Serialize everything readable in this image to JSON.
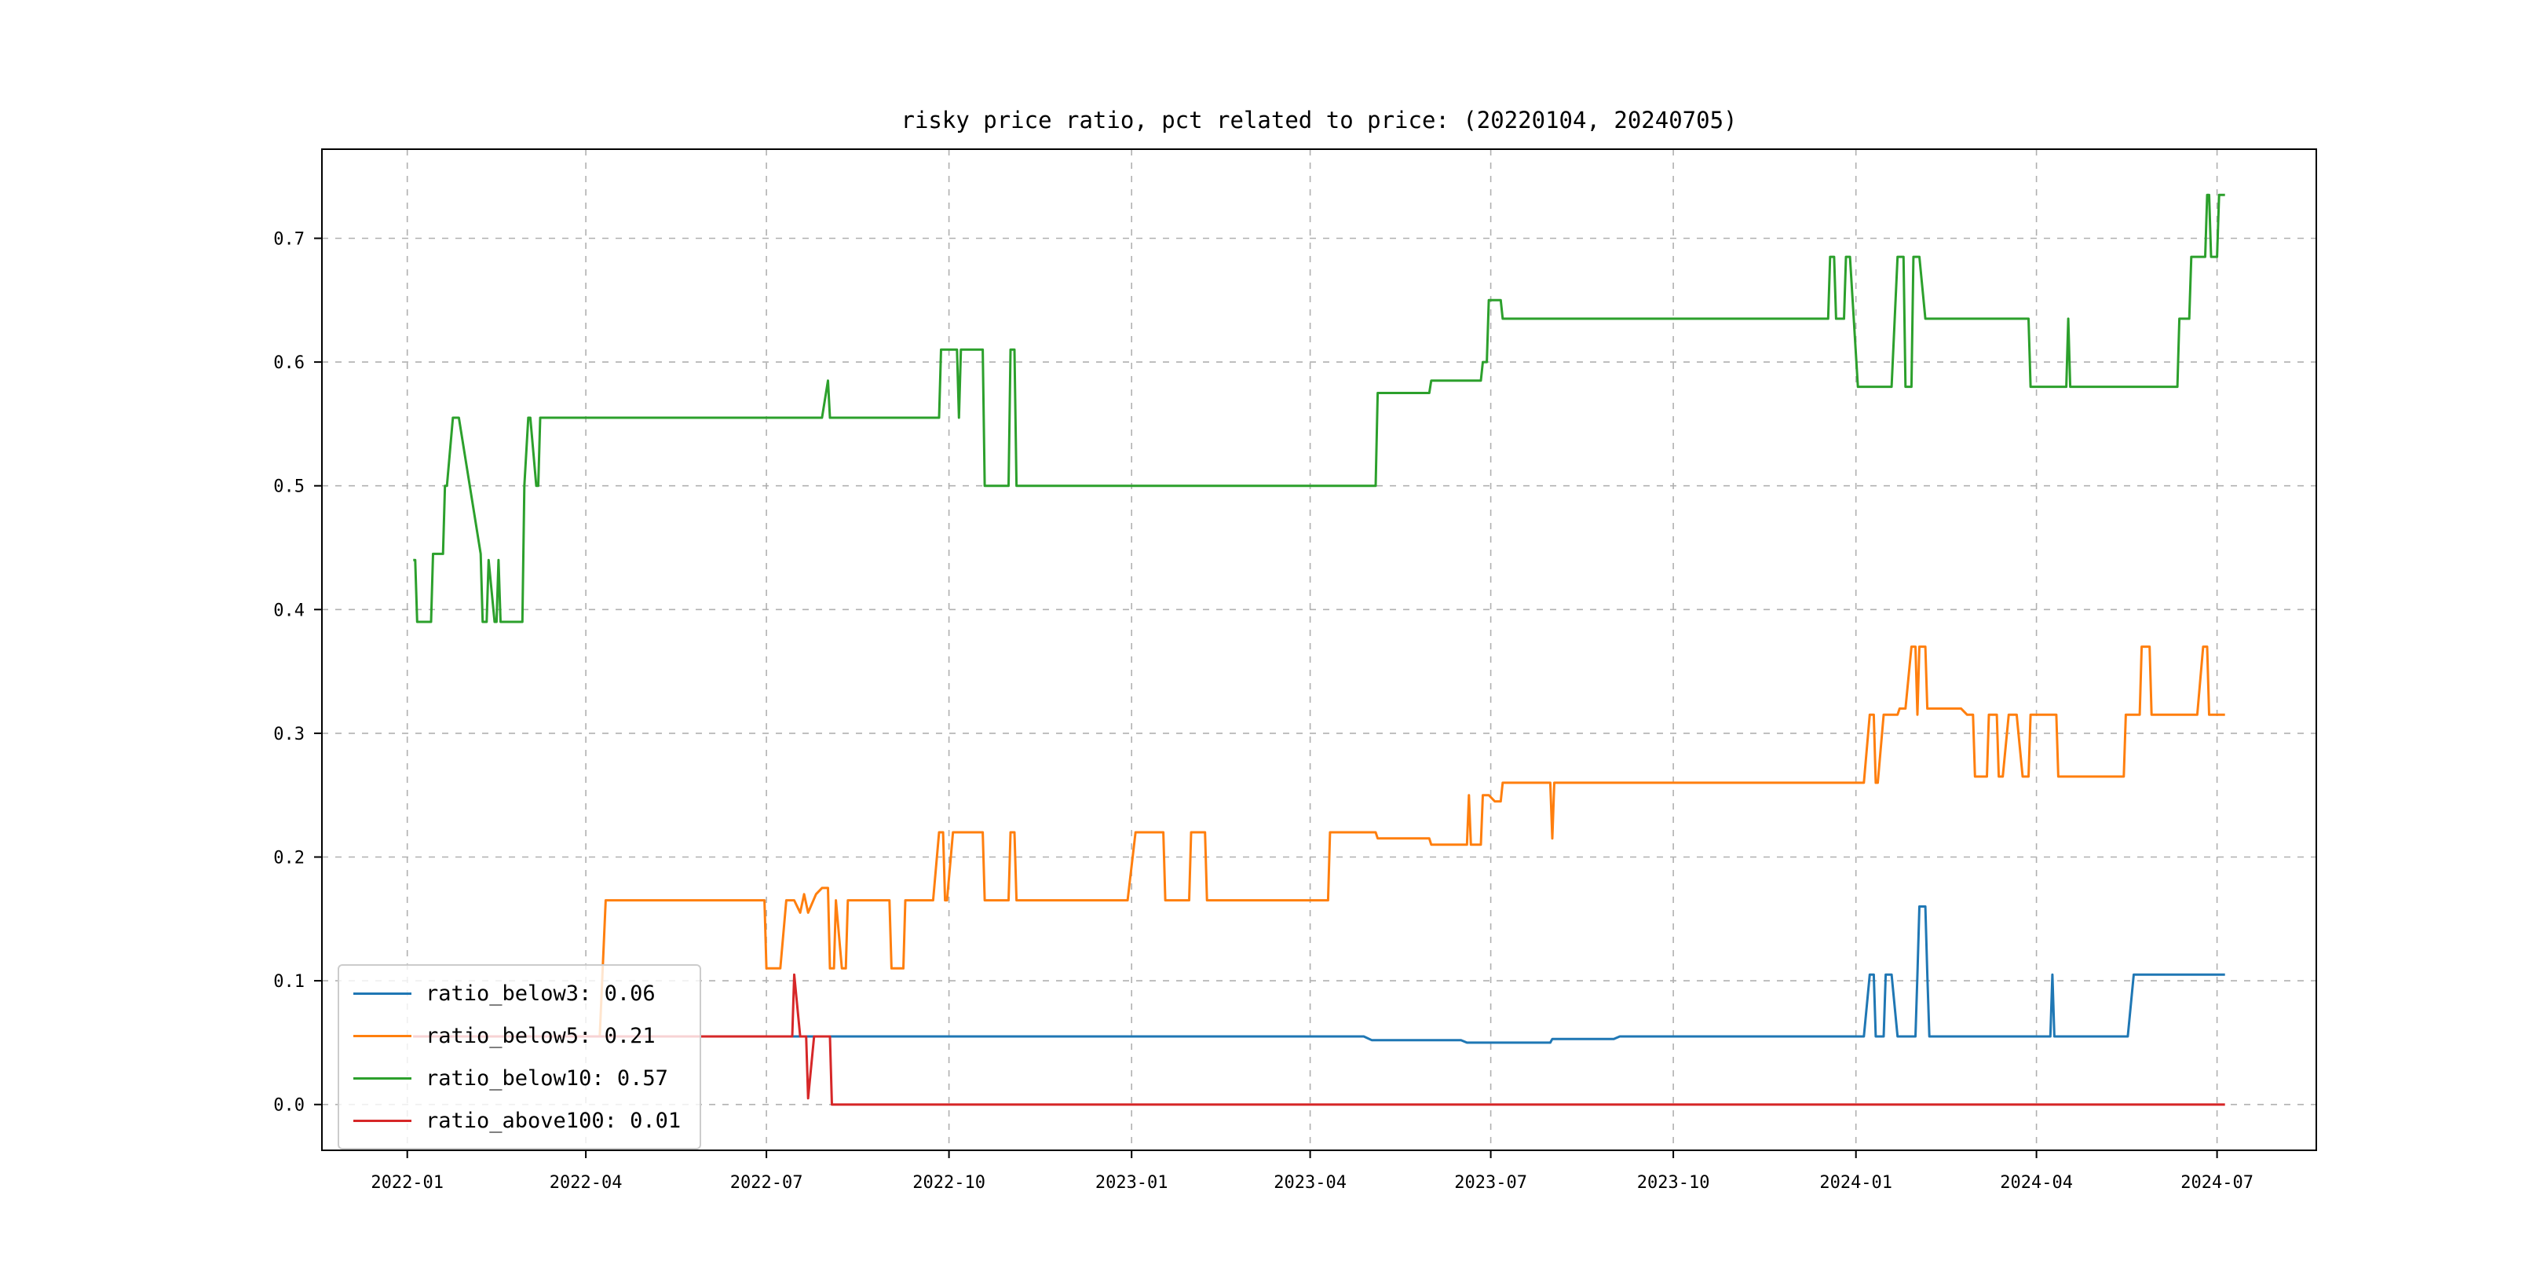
{
  "chart_data": {
    "type": "line",
    "title": "risky price ratio, pct related to price: (20220104, 20240705)",
    "xlabel": "",
    "ylabel": "",
    "background_color": "#ffffff",
    "grid": true,
    "grid_style": "dashed",
    "grid_color": "#b0b0b0",
    "xlim": [
      "2021-11-19",
      "2024-08-20"
    ],
    "ylim": [
      -0.037,
      0.772
    ],
    "x_tick_dates": [
      "2022-01-01",
      "2022-04-01",
      "2022-07-01",
      "2022-10-01",
      "2023-01-01",
      "2023-04-01",
      "2023-07-01",
      "2023-10-01",
      "2024-01-01",
      "2024-04-01",
      "2024-07-01"
    ],
    "x_tick_labels": [
      "2022-01",
      "2022-04",
      "2022-07",
      "2022-10",
      "2023-01",
      "2023-04",
      "2023-07",
      "2023-10",
      "2024-01",
      "2024-04",
      "2024-07"
    ],
    "y_ticks": [
      0.0,
      0.1,
      0.2,
      0.3,
      0.4,
      0.5,
      0.6,
      0.7
    ],
    "y_tick_labels": [
      "0.0",
      "0.1",
      "0.2",
      "0.3",
      "0.4",
      "0.5",
      "0.6",
      "0.7"
    ],
    "legend": {
      "position": "lower left",
      "entries": [
        {
          "label": "ratio_below3: 0.06",
          "color": "#1f77b4"
        },
        {
          "label": "ratio_below5: 0.21",
          "color": "#ff7f0e"
        },
        {
          "label": "ratio_below10: 0.57",
          "color": "#2ca02c"
        },
        {
          "label": "ratio_above100: 0.01",
          "color": "#d62728"
        }
      ]
    },
    "series": [
      {
        "name": "ratio_below3",
        "color": "#1f77b4",
        "points": [
          [
            "2022-01-04",
            0.055
          ],
          [
            "2023-04-28",
            0.055
          ],
          [
            "2023-05-02",
            0.052
          ],
          [
            "2023-06-16",
            0.052
          ],
          [
            "2023-06-19",
            0.05
          ],
          [
            "2023-07-31",
            0.05
          ],
          [
            "2023-08-01",
            0.053
          ],
          [
            "2023-09-01",
            0.053
          ],
          [
            "2023-09-04",
            0.055
          ],
          [
            "2024-01-05",
            0.055
          ],
          [
            "2024-01-08",
            0.105
          ],
          [
            "2024-01-10",
            0.105
          ],
          [
            "2024-01-11",
            0.055
          ],
          [
            "2024-01-15",
            0.055
          ],
          [
            "2024-01-16",
            0.105
          ],
          [
            "2024-01-19",
            0.105
          ],
          [
            "2024-01-22",
            0.055
          ],
          [
            "2024-01-31",
            0.055
          ],
          [
            "2024-02-01",
            0.105
          ],
          [
            "2024-02-02",
            0.16
          ],
          [
            "2024-02-05",
            0.16
          ],
          [
            "2024-02-06",
            0.105
          ],
          [
            "2024-02-07",
            0.055
          ],
          [
            "2024-04-08",
            0.055
          ],
          [
            "2024-04-09",
            0.105
          ],
          [
            "2024-04-10",
            0.055
          ],
          [
            "2024-05-17",
            0.055
          ],
          [
            "2024-05-20",
            0.105
          ],
          [
            "2024-07-05",
            0.105
          ]
        ]
      },
      {
        "name": "ratio_below5",
        "color": "#ff7f0e",
        "points": [
          [
            "2022-01-04",
            0.055
          ],
          [
            "2022-04-08",
            0.055
          ],
          [
            "2022-04-11",
            0.165
          ],
          [
            "2022-06-30",
            0.165
          ],
          [
            "2022-07-01",
            0.11
          ],
          [
            "2022-07-08",
            0.11
          ],
          [
            "2022-07-11",
            0.165
          ],
          [
            "2022-07-15",
            0.165
          ],
          [
            "2022-07-18",
            0.155
          ],
          [
            "2022-07-20",
            0.17
          ],
          [
            "2022-07-22",
            0.155
          ],
          [
            "2022-07-26",
            0.17
          ],
          [
            "2022-07-29",
            0.175
          ],
          [
            "2022-08-01",
            0.175
          ],
          [
            "2022-08-02",
            0.11
          ],
          [
            "2022-08-04",
            0.11
          ],
          [
            "2022-08-05",
            0.165
          ],
          [
            "2022-08-08",
            0.11
          ],
          [
            "2022-08-10",
            0.11
          ],
          [
            "2022-08-11",
            0.165
          ],
          [
            "2022-09-01",
            0.165
          ],
          [
            "2022-09-02",
            0.11
          ],
          [
            "2022-09-08",
            0.11
          ],
          [
            "2022-09-09",
            0.165
          ],
          [
            "2022-09-23",
            0.165
          ],
          [
            "2022-09-26",
            0.22
          ],
          [
            "2022-09-28",
            0.22
          ],
          [
            "2022-09-29",
            0.165
          ],
          [
            "2022-09-30",
            0.165
          ],
          [
            "2022-10-03",
            0.22
          ],
          [
            "2022-10-18",
            0.22
          ],
          [
            "2022-10-19",
            0.165
          ],
          [
            "2022-10-31",
            0.165
          ],
          [
            "2022-11-01",
            0.22
          ],
          [
            "2022-11-03",
            0.22
          ],
          [
            "2022-11-04",
            0.165
          ],
          [
            "2022-12-30",
            0.165
          ],
          [
            "2023-01-03",
            0.22
          ],
          [
            "2023-01-17",
            0.22
          ],
          [
            "2023-01-18",
            0.165
          ],
          [
            "2023-01-30",
            0.165
          ],
          [
            "2023-01-31",
            0.22
          ],
          [
            "2023-02-07",
            0.22
          ],
          [
            "2023-02-08",
            0.165
          ],
          [
            "2023-04-10",
            0.165
          ],
          [
            "2023-04-11",
            0.22
          ],
          [
            "2023-05-04",
            0.22
          ],
          [
            "2023-05-05",
            0.215
          ],
          [
            "2023-05-31",
            0.215
          ],
          [
            "2023-06-01",
            0.21
          ],
          [
            "2023-06-19",
            0.21
          ],
          [
            "2023-06-20",
            0.25
          ],
          [
            "2023-06-21",
            0.21
          ],
          [
            "2023-06-26",
            0.21
          ],
          [
            "2023-06-27",
            0.25
          ],
          [
            "2023-06-30",
            0.25
          ],
          [
            "2023-07-03",
            0.245
          ],
          [
            "2023-07-06",
            0.245
          ],
          [
            "2023-07-07",
            0.26
          ],
          [
            "2023-07-31",
            0.26
          ],
          [
            "2023-08-01",
            0.215
          ],
          [
            "2023-08-02",
            0.26
          ],
          [
            "2024-01-05",
            0.26
          ],
          [
            "2024-01-08",
            0.315
          ],
          [
            "2024-01-10",
            0.315
          ],
          [
            "2024-01-11",
            0.26
          ],
          [
            "2024-01-12",
            0.26
          ],
          [
            "2024-01-15",
            0.315
          ],
          [
            "2024-01-22",
            0.315
          ],
          [
            "2024-01-23",
            0.32
          ],
          [
            "2024-01-26",
            0.32
          ],
          [
            "2024-01-29",
            0.37
          ],
          [
            "2024-01-31",
            0.37
          ],
          [
            "2024-02-01",
            0.315
          ],
          [
            "2024-02-02",
            0.37
          ],
          [
            "2024-02-05",
            0.37
          ],
          [
            "2024-02-06",
            0.32
          ],
          [
            "2024-02-23",
            0.32
          ],
          [
            "2024-02-26",
            0.315
          ],
          [
            "2024-02-29",
            0.315
          ],
          [
            "2024-03-01",
            0.265
          ],
          [
            "2024-03-07",
            0.265
          ],
          [
            "2024-03-08",
            0.315
          ],
          [
            "2024-03-12",
            0.315
          ],
          [
            "2024-03-13",
            0.265
          ],
          [
            "2024-03-15",
            0.265
          ],
          [
            "2024-03-18",
            0.315
          ],
          [
            "2024-03-22",
            0.315
          ],
          [
            "2024-03-25",
            0.265
          ],
          [
            "2024-03-28",
            0.265
          ],
          [
            "2024-03-29",
            0.315
          ],
          [
            "2024-04-11",
            0.315
          ],
          [
            "2024-04-12",
            0.265
          ],
          [
            "2024-05-15",
            0.265
          ],
          [
            "2024-05-16",
            0.315
          ],
          [
            "2024-05-23",
            0.315
          ],
          [
            "2024-05-24",
            0.37
          ],
          [
            "2024-05-28",
            0.37
          ],
          [
            "2024-05-29",
            0.315
          ],
          [
            "2024-06-21",
            0.315
          ],
          [
            "2024-06-24",
            0.37
          ],
          [
            "2024-06-26",
            0.37
          ],
          [
            "2024-06-27",
            0.315
          ],
          [
            "2024-07-05",
            0.315
          ]
        ]
      },
      {
        "name": "ratio_below10",
        "color": "#2ca02c",
        "points": [
          [
            "2022-01-04",
            0.44
          ],
          [
            "2022-01-05",
            0.44
          ],
          [
            "2022-01-06",
            0.39
          ],
          [
            "2022-01-13",
            0.39
          ],
          [
            "2022-01-14",
            0.445
          ],
          [
            "2022-01-19",
            0.445
          ],
          [
            "2022-01-20",
            0.5
          ],
          [
            "2022-01-21",
            0.5
          ],
          [
            "2022-01-24",
            0.555
          ],
          [
            "2022-01-27",
            0.555
          ],
          [
            "2022-02-07",
            0.445
          ],
          [
            "2022-02-08",
            0.39
          ],
          [
            "2022-02-10",
            0.39
          ],
          [
            "2022-02-11",
            0.44
          ],
          [
            "2022-02-14",
            0.39
          ],
          [
            "2022-02-15",
            0.39
          ],
          [
            "2022-02-16",
            0.44
          ],
          [
            "2022-02-17",
            0.39
          ],
          [
            "2022-02-28",
            0.39
          ],
          [
            "2022-03-01",
            0.5
          ],
          [
            "2022-03-03",
            0.555
          ],
          [
            "2022-03-04",
            0.555
          ],
          [
            "2022-03-07",
            0.5
          ],
          [
            "2022-03-08",
            0.5
          ],
          [
            "2022-03-09",
            0.555
          ],
          [
            "2022-07-29",
            0.555
          ],
          [
            "2022-08-01",
            0.585
          ],
          [
            "2022-08-02",
            0.555
          ],
          [
            "2022-09-26",
            0.555
          ],
          [
            "2022-09-27",
            0.61
          ],
          [
            "2022-10-05",
            0.61
          ],
          [
            "2022-10-06",
            0.555
          ],
          [
            "2022-10-07",
            0.61
          ],
          [
            "2022-10-18",
            0.61
          ],
          [
            "2022-10-19",
            0.5
          ],
          [
            "2022-10-31",
            0.5
          ],
          [
            "2022-11-01",
            0.61
          ],
          [
            "2022-11-03",
            0.61
          ],
          [
            "2022-11-04",
            0.5
          ],
          [
            "2023-05-04",
            0.5
          ],
          [
            "2023-05-05",
            0.575
          ],
          [
            "2023-05-31",
            0.575
          ],
          [
            "2023-06-01",
            0.585
          ],
          [
            "2023-06-26",
            0.585
          ],
          [
            "2023-06-27",
            0.6
          ],
          [
            "2023-06-29",
            0.6
          ],
          [
            "2023-06-30",
            0.65
          ],
          [
            "2023-07-06",
            0.65
          ],
          [
            "2023-07-07",
            0.635
          ],
          [
            "2023-12-18",
            0.635
          ],
          [
            "2023-12-19",
            0.685
          ],
          [
            "2023-12-21",
            0.685
          ],
          [
            "2023-12-22",
            0.635
          ],
          [
            "2023-12-26",
            0.635
          ],
          [
            "2023-12-27",
            0.685
          ],
          [
            "2023-12-29",
            0.685
          ],
          [
            "2024-01-02",
            0.58
          ],
          [
            "2024-01-19",
            0.58
          ],
          [
            "2024-01-22",
            0.685
          ],
          [
            "2024-01-25",
            0.685
          ],
          [
            "2024-01-26",
            0.58
          ],
          [
            "2024-01-29",
            0.58
          ],
          [
            "2024-01-30",
            0.685
          ],
          [
            "2024-02-02",
            0.685
          ],
          [
            "2024-02-05",
            0.635
          ],
          [
            "2024-03-28",
            0.635
          ],
          [
            "2024-03-29",
            0.58
          ],
          [
            "2024-04-16",
            0.58
          ],
          [
            "2024-04-17",
            0.635
          ],
          [
            "2024-04-18",
            0.58
          ],
          [
            "2024-06-11",
            0.58
          ],
          [
            "2024-06-12",
            0.635
          ],
          [
            "2024-06-17",
            0.635
          ],
          [
            "2024-06-18",
            0.685
          ],
          [
            "2024-06-25",
            0.685
          ],
          [
            "2024-06-26",
            0.735
          ],
          [
            "2024-06-27",
            0.735
          ],
          [
            "2024-06-28",
            0.685
          ],
          [
            "2024-07-01",
            0.685
          ],
          [
            "2024-07-02",
            0.735
          ],
          [
            "2024-07-05",
            0.735
          ]
        ]
      },
      {
        "name": "ratio_above100",
        "color": "#d62728",
        "points": [
          [
            "2022-01-04",
            0.055
          ],
          [
            "2022-07-14",
            0.055
          ],
          [
            "2022-07-15",
            0.105
          ],
          [
            "2022-07-18",
            0.055
          ],
          [
            "2022-07-21",
            0.055
          ],
          [
            "2022-07-22",
            0.005
          ],
          [
            "2022-07-25",
            0.055
          ],
          [
            "2022-08-02",
            0.055
          ],
          [
            "2022-08-03",
            0.0
          ],
          [
            "2024-07-05",
            0.0
          ]
        ]
      }
    ]
  }
}
